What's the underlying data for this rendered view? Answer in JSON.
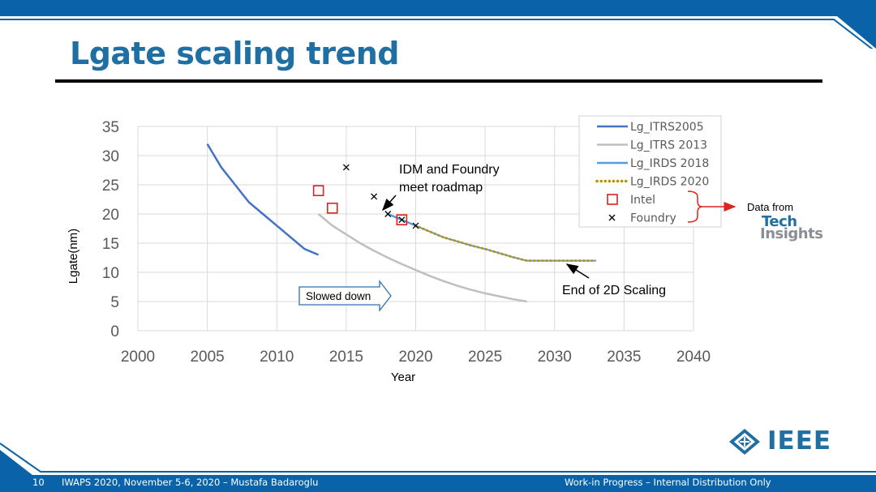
{
  "slide": {
    "title": "Lgate scaling trend",
    "page_number": "10",
    "footer_left": "IWAPS 2020, November 5-6, 2020 – Mustafa Badaroglu",
    "footer_right": "Work-in Progress – Internal Distribution Only",
    "logo_text": "IEEE",
    "data_source_label": "Data from",
    "tech_insights_line1": "Tech",
    "tech_insights_line2": "Insights",
    "colors": {
      "brand_blue": "#1f6fa3",
      "bar_blue": "#0a63a8"
    }
  },
  "chart_data": {
    "type": "line",
    "xlabel": "Year",
    "ylabel": "Lgate(nm)",
    "xlim": [
      2000,
      2040
    ],
    "ylim": [
      0,
      35
    ],
    "xticks": [
      2000,
      2005,
      2010,
      2015,
      2020,
      2025,
      2030,
      2035,
      2040
    ],
    "yticks": [
      0,
      5,
      10,
      15,
      20,
      25,
      30,
      35
    ],
    "grid": true,
    "legend_position": "top-right",
    "series": [
      {
        "name": "Lg_ITRS2005",
        "style": "line",
        "color": "#4472c4",
        "points": [
          [
            2005,
            32
          ],
          [
            2006,
            28
          ],
          [
            2007,
            25
          ],
          [
            2008,
            22
          ],
          [
            2009,
            20
          ],
          [
            2010,
            18
          ],
          [
            2011,
            16
          ],
          [
            2012,
            14
          ],
          [
            2013,
            13
          ]
        ]
      },
      {
        "name": "Lg_ITRS 2013",
        "style": "line",
        "color": "#bfbfbf",
        "points": [
          [
            2013,
            20
          ],
          [
            2014,
            18
          ],
          [
            2015,
            16.5
          ],
          [
            2016,
            15
          ],
          [
            2017,
            13.7
          ],
          [
            2018,
            12.5
          ],
          [
            2019,
            11.4
          ],
          [
            2020,
            10.4
          ],
          [
            2021,
            9.4
          ],
          [
            2022,
            8.5
          ],
          [
            2023,
            7.7
          ],
          [
            2024,
            7
          ],
          [
            2025,
            6.4
          ],
          [
            2026,
            5.9
          ],
          [
            2027,
            5.4
          ],
          [
            2028,
            5
          ]
        ]
      },
      {
        "name": "Lg_IRDS 2018",
        "style": "line",
        "color": "#5b9bd5",
        "points": [
          [
            2018,
            20
          ],
          [
            2019,
            19
          ],
          [
            2020,
            18
          ]
        ]
      },
      {
        "name": "Lg_IRDS 2020",
        "style": "dotted",
        "color": "#bf9000",
        "points": [
          [
            2020,
            18
          ],
          [
            2021,
            17
          ],
          [
            2022,
            16
          ],
          [
            2023,
            15.3
          ],
          [
            2024,
            14.6
          ],
          [
            2025,
            14
          ],
          [
            2026,
            13.3
          ],
          [
            2027,
            12.6
          ],
          [
            2028,
            12
          ],
          [
            2029,
            12
          ],
          [
            2030,
            12
          ],
          [
            2031,
            12
          ],
          [
            2032,
            12
          ],
          [
            2033,
            12
          ]
        ]
      },
      {
        "name": "Intel",
        "style": "square-marker",
        "color": "#d9251d",
        "points": [
          [
            2013,
            24
          ],
          [
            2014,
            21
          ],
          [
            2019,
            19
          ]
        ]
      },
      {
        "name": "Foundry",
        "style": "x-marker",
        "color": "#000000",
        "points": [
          [
            2015,
            28
          ],
          [
            2017,
            23
          ],
          [
            2018,
            20
          ],
          [
            2019,
            19
          ],
          [
            2020,
            18
          ]
        ]
      }
    ],
    "annotations": [
      {
        "text_line1": "IDM and Foundry",
        "text_line2": "meet roadmap",
        "points_to": [
          2019,
          19.5
        ]
      },
      {
        "text_line1": "End of 2D Scaling",
        "points_to": [
          2031,
          12
        ]
      },
      {
        "text_line1": "Slowed down",
        "style": "arrow-box"
      }
    ]
  }
}
